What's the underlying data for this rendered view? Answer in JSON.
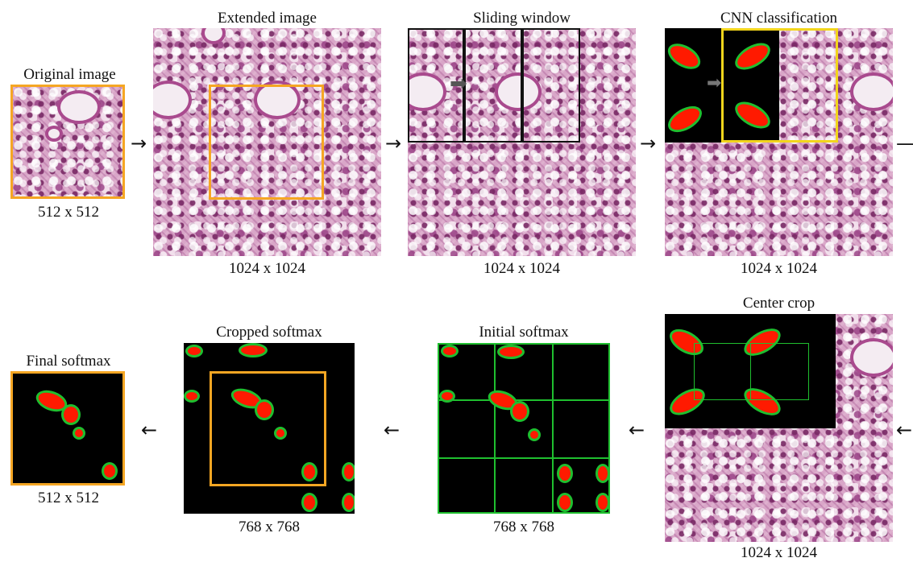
{
  "top_row": {
    "original": {
      "title": "Original image",
      "size": "512 x 512"
    },
    "extended": {
      "title": "Extended image",
      "size": "1024 x 1024"
    },
    "sliding": {
      "title": "Sliding window",
      "size": "1024 x 1024"
    },
    "cnn": {
      "title": "CNN classification",
      "size": "1024 x 1024"
    }
  },
  "bottom_row": {
    "final": {
      "title": "Final softmax",
      "size": "512 x 512"
    },
    "cropped": {
      "title": "Cropped softmax",
      "size": "768 x 768"
    },
    "initial": {
      "title": "Initial softmax",
      "size": "768 x 768"
    },
    "center": {
      "title": "Center crop",
      "size": "1024 x 1024"
    }
  },
  "arrows": {
    "right": "→",
    "left": "←",
    "dash": "—"
  },
  "colors": {
    "orange": "#f5a623",
    "yellow": "#f2d51c",
    "green": "#1fbf2f",
    "red": "#ff1a00",
    "black": "#000000"
  }
}
